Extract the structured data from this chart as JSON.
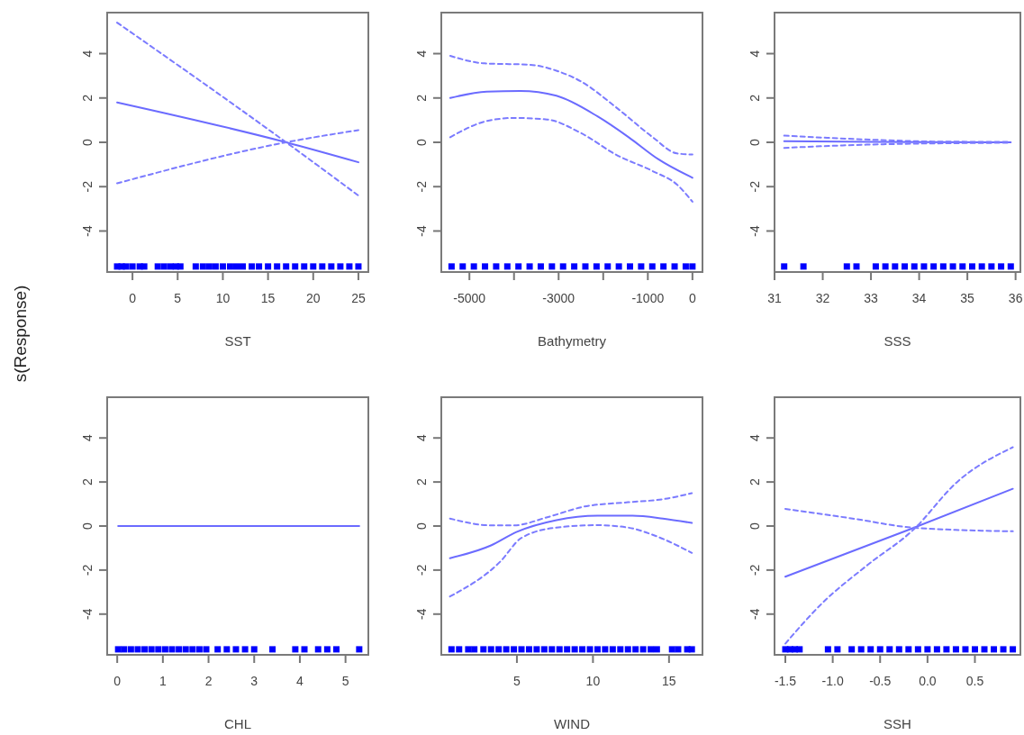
{
  "chart_data": [
    {
      "type": "line",
      "xlabel": "SST",
      "ylabel": "s(Response)",
      "xlim": [
        -2.8,
        26.1
      ],
      "ylim": [
        -5.85,
        5.85
      ],
      "xticks": [
        0,
        5,
        10,
        15,
        20,
        25
      ],
      "yticks": [
        -4,
        -2,
        0,
        2,
        4
      ],
      "series": [
        {
          "color": "#6b6bff",
          "line_style": "solid",
          "x": [
            -1.7,
            17,
            25
          ],
          "values": [
            1.8,
            0,
            -0.9
          ]
        },
        {
          "color": "#7b7bff",
          "line_style": "dashed",
          "x": [
            -1.7,
            17,
            25
          ],
          "values": [
            5.4,
            0,
            -2.4
          ]
        },
        {
          "color": "#7b7bff",
          "line_style": "dashed",
          "x": [
            -1.7,
            17,
            25
          ],
          "values": [
            -1.85,
            0,
            0.55
          ]
        },
        {
          "type": "scatter",
          "color": "#0000ff",
          "x": [
            -1.7,
            -1.2,
            -0.7,
            0,
            0.8,
            1.3,
            2.8,
            3.5,
            4.2,
            4.8,
            5.3,
            7,
            7.8,
            8.5,
            9.2,
            10,
            10.8,
            11.5,
            12.2,
            13.2,
            14,
            15,
            16,
            17,
            18,
            19,
            20,
            21,
            22,
            23,
            24,
            25
          ],
          "values": [
            -5.6,
            -5.6,
            -5.6,
            -5.6,
            -5.6,
            -5.6,
            -5.6,
            -5.6,
            -5.6,
            -5.6,
            -5.6,
            -5.6,
            -5.6,
            -5.6,
            -5.6,
            -5.6,
            -5.6,
            -5.6,
            -5.6,
            -5.6,
            -5.6,
            -5.6,
            -5.6,
            -5.6,
            -5.6,
            -5.6,
            -5.6,
            -5.6,
            -5.6,
            -5.6,
            -5.6,
            -5.6
          ]
        }
      ]
    },
    {
      "type": "line",
      "xlabel": "Bathymetry",
      "xlim": [
        -5630,
        225
      ],
      "ylim": [
        -5.85,
        5.85
      ],
      "xticks": [
        -5000,
        {
          "value": -4000,
          "label": null
        },
        -3000,
        {
          "value": -2000,
          "label": null
        },
        -1000,
        0
      ],
      "yticks": [
        -4,
        -2,
        0,
        2,
        4
      ],
      "series": [
        {
          "color": "#6b6bff",
          "line_style": "solid",
          "x": [
            -5430,
            -4610,
            -3860,
            -3050,
            -2120,
            -1430,
            -760,
            0
          ],
          "values": [
            2.0,
            2.29,
            2.32,
            2.1,
            1.16,
            0.23,
            -0.77,
            -1.6
          ]
        },
        {
          "color": "#7b7bff",
          "line_style": "dashed",
          "x": [
            -5430,
            -4660,
            -3650,
            -3050,
            -2510,
            -1700,
            -890,
            -350,
            0
          ],
          "values": [
            3.9,
            3.56,
            3.5,
            3.23,
            2.76,
            1.56,
            0.23,
            -0.5,
            -0.55
          ]
        },
        {
          "color": "#7b7bff",
          "line_style": "dashed",
          "x": [
            -5430,
            -4610,
            -4000,
            -3260,
            -2510,
            -1700,
            -890,
            -350,
            0
          ],
          "values": [
            0.23,
            0.96,
            1.1,
            1.03,
            0.43,
            -0.57,
            -1.3,
            -1.9,
            -2.68
          ]
        },
        {
          "type": "scatter",
          "color": "#0000ff",
          "x": [
            -5400,
            -5150,
            -4900,
            -4650,
            -4400,
            -4150,
            -3900,
            -3650,
            -3400,
            -3150,
            -2900,
            -2650,
            -2400,
            -2150,
            -1900,
            -1650,
            -1400,
            -1150,
            -900,
            -650,
            -400,
            -150,
            0
          ],
          "values": [
            -5.6,
            -5.6,
            -5.6,
            -5.6,
            -5.6,
            -5.6,
            -5.6,
            -5.6,
            -5.6,
            -5.6,
            -5.6,
            -5.6,
            -5.6,
            -5.6,
            -5.6,
            -5.6,
            -5.6,
            -5.6,
            -5.6,
            -5.6,
            -5.6,
            -5.6,
            -5.6
          ]
        }
      ]
    },
    {
      "type": "line",
      "xlabel": "SSS",
      "xlim": [
        31.0,
        36.1
      ],
      "ylim": [
        -5.85,
        5.85
      ],
      "xticks": [
        31,
        32,
        33,
        34,
        35,
        36
      ],
      "yticks": [
        -4,
        -2,
        0,
        2,
        4
      ],
      "series": [
        {
          "color": "#6b6bff",
          "line_style": "solid",
          "x": [
            31.2,
            33,
            35.9
          ],
          "values": [
            0.05,
            0.02,
            0
          ]
        },
        {
          "color": "#7b7bff",
          "line_style": "dashed",
          "x": [
            31.2,
            33,
            34.5,
            35.9
          ],
          "values": [
            0.3,
            0.12,
            0.03,
            0.02
          ]
        },
        {
          "color": "#7b7bff",
          "line_style": "dashed",
          "x": [
            31.2,
            33,
            35.9
          ],
          "values": [
            -0.25,
            -0.1,
            -0.02
          ]
        },
        {
          "type": "scatter",
          "color": "#0000ff",
          "x": [
            31.2,
            31.6,
            32.5,
            32.7,
            33.1,
            33.3,
            33.5,
            33.7,
            33.9,
            34.1,
            34.3,
            34.5,
            34.7,
            34.9,
            35.1,
            35.3,
            35.5,
            35.7,
            35.9
          ],
          "values": [
            -5.6,
            -5.6,
            -5.6,
            -5.6,
            -5.6,
            -5.6,
            -5.6,
            -5.6,
            -5.6,
            -5.6,
            -5.6,
            -5.6,
            -5.6,
            -5.6,
            -5.6,
            -5.6,
            -5.6,
            -5.6,
            -5.6
          ]
        }
      ]
    },
    {
      "type": "line",
      "xlabel": "CHL",
      "xlim": [
        -0.22,
        5.5
      ],
      "ylim": [
        -5.85,
        5.85
      ],
      "xticks": [
        0,
        1,
        2,
        3,
        4,
        5
      ],
      "yticks": [
        -4,
        -2,
        0,
        2,
        4
      ],
      "series": [
        {
          "color": "#6b6bff",
          "line_style": "solid",
          "x": [
            0.02,
            5.3
          ],
          "values": [
            0,
            0
          ]
        },
        {
          "type": "scatter",
          "color": "#0000ff",
          "x": [
            0.02,
            0.15,
            0.3,
            0.45,
            0.6,
            0.75,
            0.9,
            1.05,
            1.2,
            1.35,
            1.5,
            1.65,
            1.8,
            1.95,
            2.2,
            2.4,
            2.6,
            2.8,
            3.0,
            3.4,
            3.9,
            4.1,
            4.4,
            4.6,
            4.8,
            5.3
          ],
          "values": [
            -5.6,
            -5.6,
            -5.6,
            -5.6,
            -5.6,
            -5.6,
            -5.6,
            -5.6,
            -5.6,
            -5.6,
            -5.6,
            -5.6,
            -5.6,
            -5.6,
            -5.6,
            -5.6,
            -5.6,
            -5.6,
            -5.6,
            -5.6,
            -5.6,
            -5.6,
            -5.6,
            -5.6,
            -5.6,
            -5.6
          ]
        }
      ]
    },
    {
      "type": "line",
      "xlabel": "WIND",
      "xlim": [
        0.03,
        17.2
      ],
      "ylim": [
        -5.85,
        5.85
      ],
      "xticks": [
        5,
        10,
        15
      ],
      "yticks": [
        -4,
        -2,
        0,
        2,
        4
      ],
      "series": [
        {
          "color": "#6b6bff",
          "line_style": "solid",
          "x": [
            0.6,
            3.3,
            4.97,
            7.6,
            10.3,
            12.6,
            14.6,
            16.5
          ],
          "values": [
            -1.46,
            -0.88,
            -0.27,
            0.27,
            0.47,
            0.47,
            0.34,
            0.14
          ]
        },
        {
          "color": "#7b7bff",
          "line_style": "dashed",
          "x": [
            0.6,
            3.3,
            4.8,
            7.0,
            9.4,
            12.3,
            14.6,
            16.5
          ],
          "values": [
            0.34,
            0.03,
            0.03,
            0.4,
            0.88,
            1.08,
            1.22,
            1.49
          ]
        },
        {
          "color": "#7b7bff",
          "line_style": "dashed",
          "x": [
            0.6,
            3.9,
            5.3,
            7.6,
            10.3,
            12.3,
            14.2,
            16.5
          ],
          "values": [
            -3.2,
            -1.62,
            -0.54,
            -0.07,
            0.04,
            -0.07,
            -0.47,
            -1.22
          ]
        },
        {
          "type": "scatter",
          "color": "#0000ff",
          "x": [
            0.7,
            1.2,
            1.8,
            2.2,
            2.8,
            3.3,
            3.8,
            4.3,
            4.8,
            5.3,
            5.8,
            6.3,
            6.8,
            7.3,
            7.8,
            8.3,
            8.8,
            9.3,
            9.8,
            10.3,
            10.8,
            11.3,
            11.8,
            12.3,
            12.8,
            13.3,
            13.8,
            14.2,
            15.2,
            15.6,
            16.2,
            16.5
          ],
          "values": [
            -5.6,
            -5.6,
            -5.6,
            -5.6,
            -5.6,
            -5.6,
            -5.6,
            -5.6,
            -5.6,
            -5.6,
            -5.6,
            -5.6,
            -5.6,
            -5.6,
            -5.6,
            -5.6,
            -5.6,
            -5.6,
            -5.6,
            -5.6,
            -5.6,
            -5.6,
            -5.6,
            -5.6,
            -5.6,
            -5.6,
            -5.6,
            -5.6,
            -5.6,
            -5.6,
            -5.6,
            -5.6
          ]
        }
      ]
    },
    {
      "type": "line",
      "xlabel": "SSH",
      "xlim": [
        -1.614,
        0.98
      ],
      "ylim": [
        -5.85,
        5.85
      ],
      "xticks": [
        -1.5,
        {
          "value": -1.0,
          "label": "-1.0"
        },
        {
          "value": -0.5,
          "label": "-0.5"
        },
        {
          "value": 0,
          "label": "0.0"
        },
        0.5
      ],
      "yticks": [
        -4,
        -2,
        0,
        2,
        4
      ],
      "series": [
        {
          "color": "#6b6bff",
          "line_style": "solid",
          "x": [
            -1.5,
            -0.157,
            0.9
          ],
          "values": [
            -2.3,
            -0.1,
            1.69
          ]
        },
        {
          "color": "#7b7bff",
          "line_style": "dashed",
          "x": [
            -1.5,
            -0.79,
            -0.157,
            0.9
          ],
          "values": [
            0.78,
            0.34,
            -0.07,
            -0.24
          ]
        },
        {
          "color": "#7b7bff",
          "line_style": "dashed",
          "x": [
            -1.5,
            -1.11,
            -0.63,
            -0.157,
            0.32,
            0.9
          ],
          "values": [
            -5.34,
            -3.5,
            -1.76,
            -0.2,
            2.03,
            3.58
          ]
        },
        {
          "type": "scatter",
          "color": "#0000ff",
          "x": [
            -1.5,
            -1.45,
            -1.4,
            -1.35,
            -1.05,
            -0.95,
            -0.8,
            -0.7,
            -0.6,
            -0.5,
            -0.4,
            -0.3,
            -0.2,
            -0.1,
            0,
            0.1,
            0.2,
            0.3,
            0.4,
            0.5,
            0.6,
            0.7,
            0.8,
            0.9
          ],
          "values": [
            -5.6,
            -5.6,
            -5.6,
            -5.6,
            -5.6,
            -5.6,
            -5.6,
            -5.6,
            -5.6,
            -5.6,
            -5.6,
            -5.6,
            -5.6,
            -5.6,
            -5.6,
            -5.6,
            -5.6,
            -5.6,
            -5.6,
            -5.6,
            -5.6,
            -5.6,
            -5.6,
            -5.6
          ]
        }
      ]
    }
  ]
}
